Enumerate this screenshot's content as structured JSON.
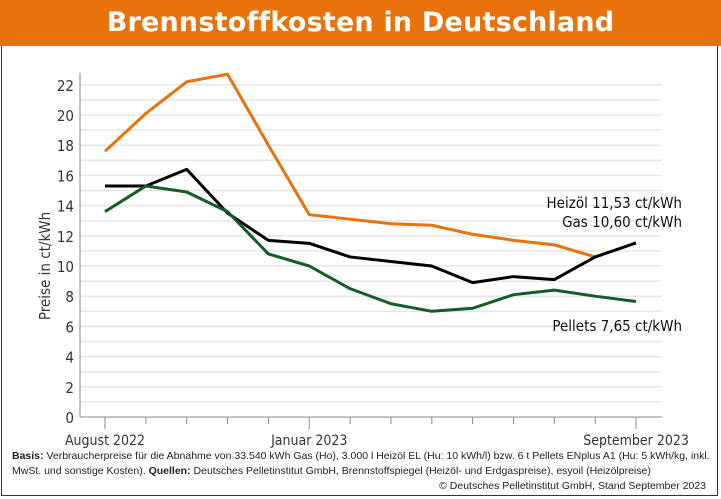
{
  "title": "Brennstoffkosten in Deutschland",
  "footnote": {
    "basis_label": "Basis:",
    "basis_text": "Verbraucherpreise für die Abnahme von 33.540 kWh Gas (Ho), 3.000 l Heizöl EL (Hu: 10 kWh/l) bzw. 6 t Pellets ENplus A1 (Hu: 5 kWh/kg, inkl. MwSt. und sonstige Kosten).",
    "sources_label": "Quellen:",
    "sources_text": "Deutsches Pelletinstitut GmbH, Brennstoffspiegel (Heizöl- und Erdgaspreise), esyoil (Heizölpreise)",
    "copyright": "© Deutsches Pelletinstitut GmbH, Stand September 2023"
  },
  "chart_data": {
    "type": "line",
    "title": "Brennstoffkosten in Deutschland",
    "ylabel": "Preise in ct/kWh",
    "xlabel": "",
    "ylim": [
      0,
      22
    ],
    "yticks": [
      0,
      2,
      4,
      6,
      8,
      10,
      12,
      14,
      16,
      18,
      20,
      22
    ],
    "grid": true,
    "x": [
      "2022-08",
      "2022-09",
      "2022-10",
      "2022-11",
      "2022-12",
      "2023-01",
      "2023-02",
      "2023-03",
      "2023-04",
      "2023-05",
      "2023-06",
      "2023-07",
      "2023-08",
      "2023-09"
    ],
    "xtick_labels": [
      {
        "index": 0,
        "label": "August 2022"
      },
      {
        "index": 5,
        "label": "Januar 2023"
      },
      {
        "index": 13,
        "label": "September 2023"
      }
    ],
    "series": [
      {
        "name": "Gas",
        "color": "#e8730c",
        "end_label": "Gas 10,60 ct/kWh",
        "values": [
          17.6,
          20.1,
          22.2,
          22.7,
          18.0,
          13.4,
          13.1,
          12.8,
          12.7,
          12.1,
          11.7,
          11.4,
          10.6,
          null
        ]
      },
      {
        "name": "Heizöl",
        "color": "#000000",
        "end_label": "Heizöl 11,53 ct/kWh",
        "values": [
          15.3,
          15.3,
          16.4,
          13.5,
          11.7,
          11.5,
          10.6,
          10.3,
          10.0,
          8.9,
          9.3,
          9.1,
          10.6,
          11.53
        ]
      },
      {
        "name": "Pellets",
        "color": "#135e25",
        "end_label": "Pellets 7,65 ct/kWh",
        "values": [
          13.6,
          15.3,
          14.9,
          13.6,
          10.8,
          10.0,
          8.5,
          7.5,
          7.0,
          7.2,
          8.1,
          8.4,
          8.0,
          7.65
        ]
      }
    ]
  }
}
